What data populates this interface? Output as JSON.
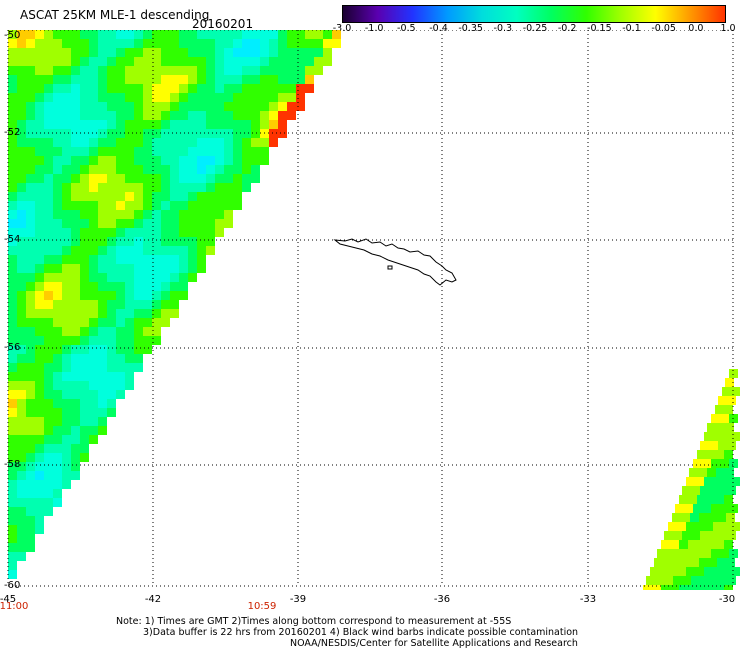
{
  "header": {
    "title": "ASCAT 25KM MLE-1 descending",
    "date": "20160201"
  },
  "colorbar": {
    "ticks": [
      "-3.0",
      "-1.0",
      "-0.5",
      "-0.4",
      "-0.35",
      "-0.3",
      "-0.25",
      "-0.2",
      "-0.15",
      "-0.1",
      "-0.05",
      "0.0",
      "1.0"
    ],
    "colors": [
      "#1a0030",
      "#5a00b0",
      "#2233ff",
      "#0099ff",
      "#00dddd",
      "#00ffc0",
      "#00ff60",
      "#30ff00",
      "#a0ff00",
      "#ffff00",
      "#ff9900",
      "#ff3300"
    ]
  },
  "axes": {
    "lat_labels": [
      "-50",
      "-52",
      "-54",
      "-56",
      "-58",
      "-60"
    ],
    "lon_labels": [
      "-45",
      "-42",
      "-39",
      "-36",
      "-33",
      "-30"
    ],
    "lat_range": [
      -60,
      -50
    ],
    "lon_range": [
      -45,
      -30
    ]
  },
  "times": [
    {
      "label": "11:00",
      "lon": -45
    },
    {
      "label": "10:59",
      "lon": -40.7
    }
  ],
  "notes": {
    "line1": "Note: 1) Times are GMT 2)Times along bottom correspond to measurement at -55S",
    "line2": "3)Data buffer is 22 hrs from 20160201 4) Black wind barbs indicate possible contamination",
    "line3": "NOAA/NESDIS/Center for Satellite Applications and Research"
  }
}
